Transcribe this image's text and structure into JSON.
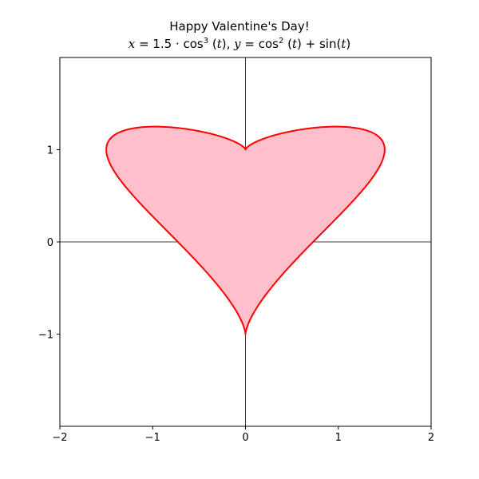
{
  "chart_data": {
    "type": "area",
    "title": "Happy Valentine's Day!",
    "subtitle": "x = 1.5 · cos³(t), y = cos²(t) + sin(t)",
    "xlabel": "",
    "ylabel": "",
    "xlim": [
      -2,
      2
    ],
    "ylim": [
      -2,
      2
    ],
    "xticks": [
      -2,
      -1,
      0,
      1,
      2
    ],
    "yticks": [
      -1,
      0,
      1
    ],
    "xtick_labels": [
      "−2",
      "−1",
      "0",
      "1",
      "2"
    ],
    "ytick_labels": [
      "−1",
      "0",
      "1"
    ],
    "grid": false,
    "zero_lines": true,
    "series": [
      {
        "parametric": {
          "x": "1.5*cos(t)^3",
          "y": "cos(t)^2 + sin(t)",
          "t_range": [
            0,
            6.283185307
          ]
        },
        "line_color": "#ff0000",
        "fill_color": "#ffc0cb",
        "x": [
          1.5,
          1.286,
          0.719,
          0.187,
          0.0,
          -0.187,
          -0.719,
          -1.286,
          -1.5,
          -1.286,
          -0.719,
          -0.187,
          0.0,
          0.187,
          0.719,
          1.286,
          1.5
        ],
        "y": [
          1.0,
          1.236,
          1.207,
          1.07,
          1.0,
          1.07,
          1.207,
          1.236,
          1.0,
          0.471,
          -0.207,
          -0.778,
          -1.0,
          -0.778,
          -0.207,
          0.471,
          1.0
        ]
      }
    ]
  }
}
